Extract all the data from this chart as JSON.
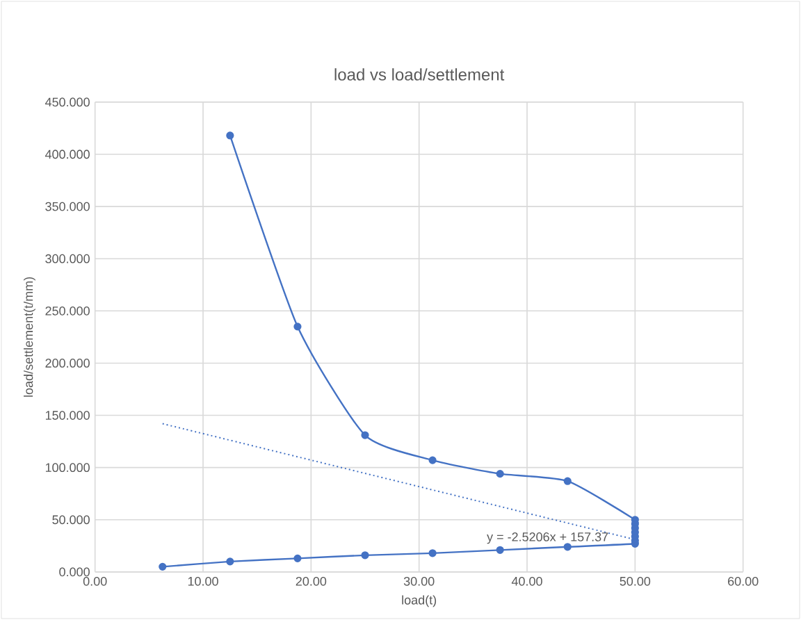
{
  "chart_data": {
    "type": "line",
    "title": "load vs load/settlement",
    "xlabel": "load(t)",
    "ylabel": "load/settlement(t/mm)",
    "series": [
      {
        "color": "#4472c4",
        "marker": "circle",
        "line_style": "solid",
        "x": [
          6.25,
          12.5,
          18.75,
          25,
          31.25,
          37.5,
          43.75,
          50,
          50,
          50,
          50,
          50,
          50,
          50,
          43.75,
          37.5,
          31.25,
          25,
          18.75,
          12.5
        ],
        "values": [
          5,
          10,
          13,
          16,
          18,
          21,
          24,
          27,
          30,
          34,
          38,
          42,
          46,
          50,
          87,
          94,
          107,
          131,
          235,
          418
        ]
      },
      {
        "type": "line",
        "color": "#4472c4",
        "marker": "none",
        "line_style": "dotted",
        "x": [
          6.25,
          50
        ],
        "values": [
          142,
          31
        ]
      }
    ],
    "annotations": [
      "y = -2.5206x + 157.37"
    ],
    "xlim": [
      0,
      60
    ],
    "ylim": [
      0,
      450
    ],
    "xticks": [
      {
        "value": 0,
        "label": "0.00"
      },
      {
        "value": 10,
        "label": "10.00"
      },
      {
        "value": 20,
        "label": "20.00"
      },
      {
        "value": 30,
        "label": "30.00"
      },
      {
        "value": 40,
        "label": "40.00"
      },
      {
        "value": 50,
        "label": "50.00"
      },
      {
        "value": 60,
        "label": "60.00"
      }
    ],
    "yticks": [
      {
        "value": 0,
        "label": "0.000"
      },
      {
        "value": 50,
        "label": "50.000"
      },
      {
        "value": 100,
        "label": "100.000"
      },
      {
        "value": 150,
        "label": "150.000"
      },
      {
        "value": 200,
        "label": "200.000"
      },
      {
        "value": 250,
        "label": "250.000"
      },
      {
        "value": 300,
        "label": "300.000"
      },
      {
        "value": 350,
        "label": "350.000"
      },
      {
        "value": 400,
        "label": "400.000"
      },
      {
        "value": 450,
        "label": "450.000"
      }
    ],
    "grid": true
  }
}
